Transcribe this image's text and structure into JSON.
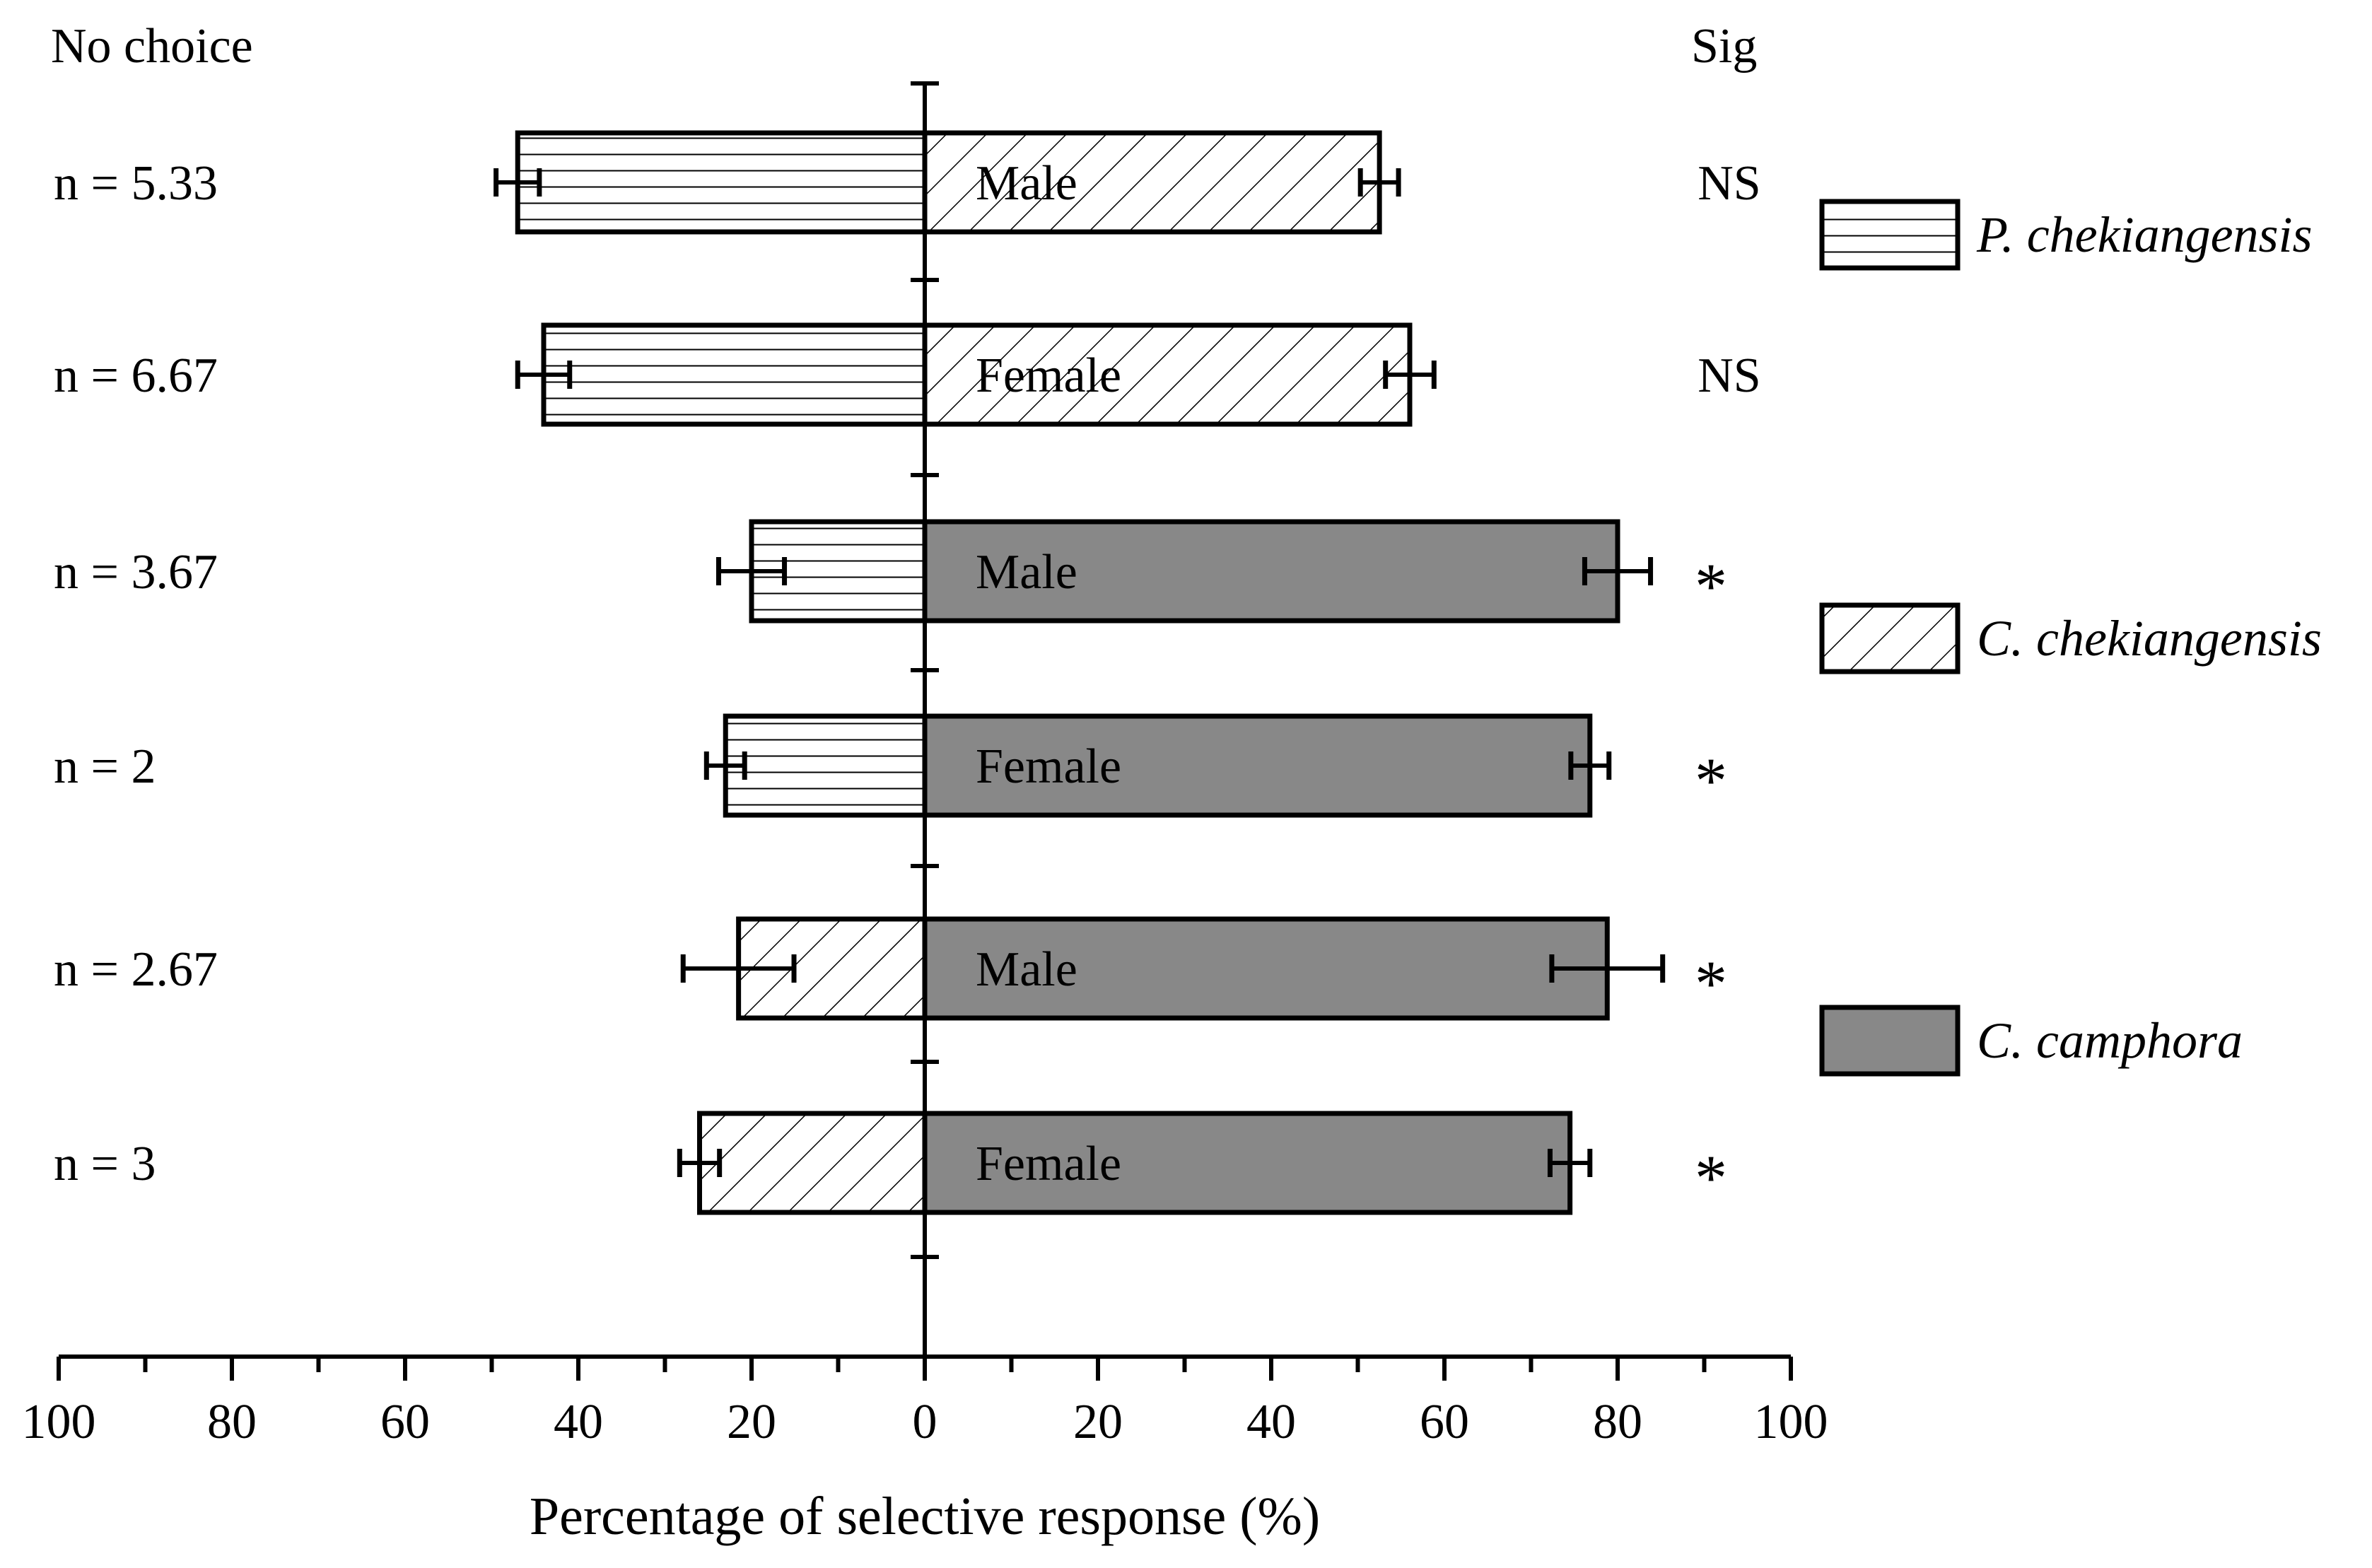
{
  "header": {
    "left_label": "No choice",
    "right_label": "Sig"
  },
  "x_axis": {
    "label": "Percentage of selective response (%)",
    "tick_labels": [
      "100",
      "80",
      "60",
      "40",
      "20",
      "0",
      "20",
      "40",
      "60",
      "80",
      "100"
    ]
  },
  "legend": [
    {
      "name": "P. chekiangensis",
      "pattern": "horizontal-lines"
    },
    {
      "name": "C. chekiangensis",
      "pattern": "diagonal-hatch"
    },
    {
      "name": "C. camphora",
      "pattern": "solid",
      "color": "#888888"
    }
  ],
  "chart_data": {
    "type": "bar",
    "orientation": "horizontal-diverging",
    "xlim": [
      -100,
      100
    ],
    "grid": false,
    "legend_position": "right",
    "rows": [
      {
        "n_label": "n = 5.33",
        "sex": "Male",
        "left_species": "P. chekiangensis",
        "left_value": 47,
        "left_error": 2.5,
        "right_species": "C. chekiangensis",
        "right_value": 52.5,
        "right_error": 2.2,
        "sig": "NS"
      },
      {
        "n_label": "n = 6.67",
        "sex": "Female",
        "left_species": "P. chekiangensis",
        "left_value": 44,
        "left_error": 3.0,
        "right_species": "C. chekiangensis",
        "right_value": 56,
        "right_error": 2.8,
        "sig": "NS"
      },
      {
        "n_label": "n = 3.67",
        "sex": "Male",
        "left_species": "P. chekiangensis",
        "left_value": 20,
        "left_error": 3.8,
        "right_species": "C. camphora",
        "right_value": 80,
        "right_error": 3.8,
        "sig": "*"
      },
      {
        "n_label": "n = 2",
        "sex": "Female",
        "left_species": "P. chekiangensis",
        "left_value": 23,
        "left_error": 2.2,
        "right_species": "C. camphora",
        "right_value": 76.8,
        "right_error": 2.2,
        "sig": "*"
      },
      {
        "n_label": "n = 2.67",
        "sex": "Male",
        "left_species": "C. chekiangensis",
        "left_value": 21.5,
        "left_error": 6.4,
        "right_species": "C. camphora",
        "right_value": 78.8,
        "right_error": 6.4,
        "sig": "*"
      },
      {
        "n_label": "n = 3",
        "sex": "Female",
        "left_species": "C. chekiangensis",
        "left_value": 26,
        "left_error": 2.3,
        "right_species": "C. camphora",
        "right_value": 74.5,
        "right_error": 2.3,
        "sig": "*"
      }
    ]
  }
}
